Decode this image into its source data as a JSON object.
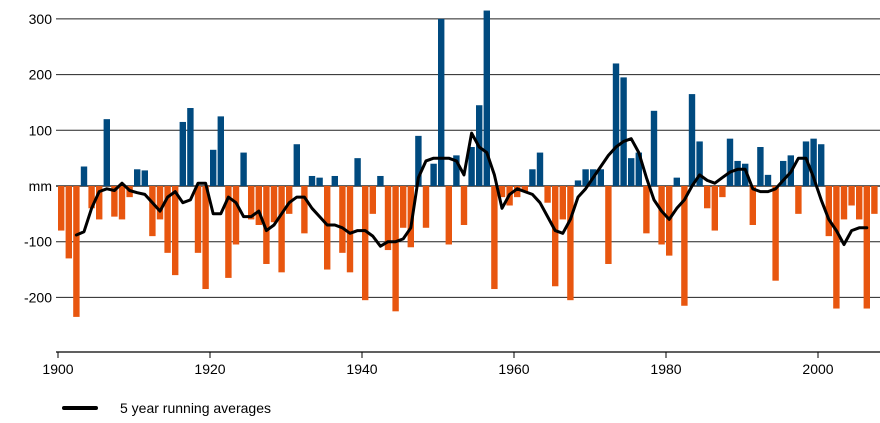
{
  "chart_data": {
    "type": "bar",
    "ylabel": "mm",
    "ylim": [
      -300,
      300
    ],
    "xlim": [
      1900,
      2008
    ],
    "yticks": [
      300,
      200,
      100,
      "mm",
      -100,
      -200
    ],
    "xticks": [
      1900,
      1920,
      1940,
      1960,
      1980,
      2000
    ],
    "grid": "horizontal",
    "colors": {
      "positive": "#004a7f",
      "negative": "#e8560f",
      "line": "#000000"
    },
    "years": [
      1900,
      1901,
      1902,
      1903,
      1904,
      1905,
      1906,
      1907,
      1908,
      1909,
      1910,
      1911,
      1912,
      1913,
      1914,
      1915,
      1916,
      1917,
      1918,
      1919,
      1920,
      1921,
      1922,
      1923,
      1924,
      1925,
      1926,
      1927,
      1928,
      1929,
      1930,
      1931,
      1932,
      1933,
      1934,
      1935,
      1936,
      1937,
      1938,
      1939,
      1940,
      1941,
      1942,
      1943,
      1944,
      1945,
      1946,
      1947,
      1948,
      1949,
      1950,
      1951,
      1952,
      1953,
      1954,
      1955,
      1956,
      1957,
      1958,
      1959,
      1960,
      1961,
      1962,
      1963,
      1964,
      1965,
      1966,
      1967,
      1968,
      1969,
      1970,
      1971,
      1972,
      1973,
      1974,
      1975,
      1976,
      1977,
      1978,
      1979,
      1980,
      1981,
      1982,
      1983,
      1984,
      1985,
      1986,
      1987,
      1988,
      1989,
      1990,
      1991,
      1992,
      1993,
      1994,
      1995,
      1996,
      1997,
      1998,
      1999,
      2000,
      2001,
      2002,
      2003,
      2004,
      2005,
      2006,
      2007
    ],
    "values": [
      -80,
      -130,
      -235,
      35,
      -40,
      -60,
      120,
      -55,
      -60,
      -20,
      30,
      28,
      -90,
      -60,
      -120,
      -160,
      115,
      140,
      -120,
      -185,
      65,
      125,
      -165,
      -105,
      60,
      -60,
      -70,
      -140,
      -65,
      -155,
      -50,
      75,
      -85,
      18,
      15,
      -150,
      18,
      -120,
      -155,
      50,
      -205,
      -50,
      18,
      -115,
      -225,
      -75,
      -110,
      90,
      -75,
      40,
      300,
      -105,
      55,
      -70,
      70,
      145,
      315,
      -185,
      -20,
      -35,
      -20,
      -10,
      30,
      60,
      -30,
      -180,
      -60,
      -205,
      10,
      30,
      30,
      30,
      -140,
      220,
      195,
      50,
      60,
      -85,
      135,
      -105,
      -125,
      15,
      -215,
      165,
      80,
      -40,
      -80,
      -20,
      85,
      45,
      40,
      -70,
      70,
      20,
      -170,
      45,
      55,
      -50,
      80,
      85,
      75,
      -90,
      -220,
      -60,
      -35,
      -60,
      -220,
      -50
    ],
    "series": [
      {
        "name": "5 year running averages",
        "x": [
          1902,
          1903,
          1904,
          1905,
          1906,
          1907,
          1908,
          1909,
          1910,
          1911,
          1912,
          1913,
          1914,
          1915,
          1916,
          1917,
          1918,
          1919,
          1920,
          1921,
          1922,
          1923,
          1924,
          1925,
          1926,
          1927,
          1928,
          1929,
          1930,
          1931,
          1932,
          1933,
          1934,
          1935,
          1936,
          1937,
          1938,
          1939,
          1940,
          1941,
          1942,
          1943,
          1944,
          1945,
          1946,
          1947,
          1948,
          1949,
          1950,
          1951,
          1952,
          1953,
          1954,
          1955,
          1956,
          1957,
          1958,
          1959,
          1960,
          1961,
          1962,
          1963,
          1964,
          1965,
          1966,
          1967,
          1968,
          1969,
          1970,
          1971,
          1972,
          1973,
          1974,
          1975,
          1976,
          1977,
          1978,
          1979,
          1980,
          1981,
          1982,
          1983,
          1984,
          1985,
          1986,
          1987,
          1988,
          1989,
          1990,
          1991,
          1992,
          1993,
          1994,
          1995,
          1996,
          1997,
          1998,
          1999,
          2000,
          2001,
          2002,
          2003,
          2004,
          2005,
          2006
        ],
        "y": [
          -88,
          -82,
          -40,
          -10,
          -5,
          -8,
          5,
          -8,
          -12,
          -15,
          -30,
          -45,
          -20,
          -10,
          -30,
          -25,
          5,
          5,
          -50,
          -50,
          -20,
          -30,
          -55,
          -55,
          -45,
          -80,
          -70,
          -50,
          -30,
          -20,
          -20,
          -40,
          -55,
          -70,
          -70,
          -75,
          -85,
          -80,
          -80,
          -90,
          -108,
          -100,
          -100,
          -95,
          -75,
          15,
          45,
          50,
          50,
          50,
          45,
          20,
          95,
          70,
          60,
          20,
          -40,
          -15,
          -5,
          -10,
          -15,
          -30,
          -55,
          -80,
          -85,
          -60,
          -20,
          -5,
          15,
          35,
          55,
          70,
          80,
          85,
          60,
          15,
          -25,
          -45,
          -60,
          -40,
          -25,
          0,
          20,
          10,
          5,
          15,
          25,
          30,
          30,
          -5,
          -10,
          -10,
          -5,
          10,
          25,
          50,
          50,
          15,
          -25,
          -60,
          -80,
          -105,
          -80,
          -75,
          -75
        ]
      }
    ]
  },
  "legend": {
    "label": "5 year running averages"
  }
}
